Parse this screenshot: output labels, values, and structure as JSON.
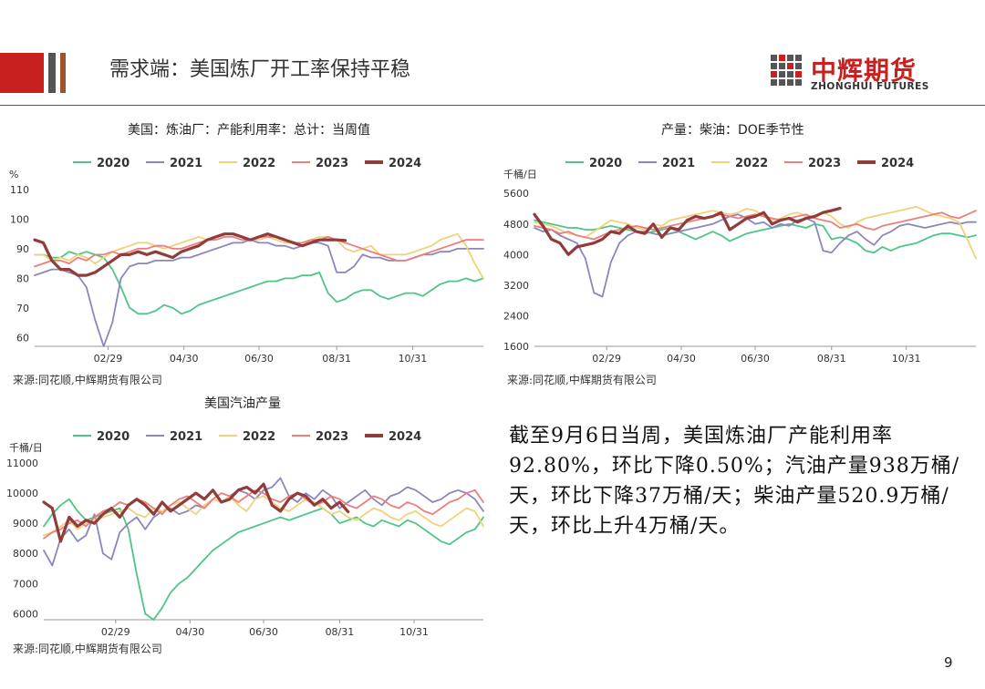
{
  "header": {
    "title": "需求端：美国炼厂开工率保持平稳",
    "logo_cn": "中辉期货",
    "logo_en": "ZHONGHUI FUTURES"
  },
  "summary": "截至9月6日当周，美国炼油厂产能利用率92.80%，环比下降0.50%；汽油产量938万桶/天，环比下降37万桶/天；柴油产量520.9万桶/天，环比上升4万桶/天。",
  "page_number": "9",
  "colors": {
    "2020": "#4fc586",
    "2021": "#8a86c0",
    "2022": "#efd27a",
    "2023": "#ee7e7c",
    "2024": "#8f3c3a"
  },
  "chart_data": [
    {
      "type": "line",
      "title": "美国：炼油厂：产能利用率：总计：当周值",
      "ylabel": "%",
      "source": "来源:同花顺,中辉期货有限公司",
      "x_ticks": [
        "02/29",
        "04/30",
        "06/30",
        "08/31",
        "10/31"
      ],
      "x_tick_weeks": [
        8.5,
        17.3,
        26.0,
        35.0,
        43.8
      ],
      "yticks": [
        60,
        70,
        80,
        90,
        100,
        110
      ],
      "ylim": [
        57,
        110
      ],
      "xlim": [
        0,
        52
      ],
      "series": [
        {
          "name": "2020",
          "values": [
            88,
            88,
            87,
            87,
            89,
            88,
            89,
            88,
            87,
            83,
            77,
            70,
            68,
            68,
            69,
            71,
            70,
            68,
            69,
            71,
            72,
            73,
            74,
            75,
            76,
            77,
            78,
            79,
            79,
            80,
            80,
            81,
            81,
            82,
            75,
            72,
            73,
            75,
            76,
            76,
            74,
            73,
            74,
            75,
            75,
            74,
            76,
            78,
            79,
            79,
            80,
            79,
            80
          ]
        },
        {
          "name": "2021",
          "values": [
            81,
            82,
            83,
            83,
            82,
            81,
            77,
            66,
            57,
            65,
            80,
            84,
            85,
            85,
            86,
            86,
            86,
            87,
            87,
            88,
            89,
            90,
            91,
            92,
            92,
            93,
            92,
            92,
            91,
            91,
            90,
            91,
            92,
            92,
            91,
            82,
            82,
            84,
            88,
            87,
            87,
            86,
            86,
            86,
            87,
            88,
            88,
            89,
            89,
            90,
            90,
            90,
            90
          ]
        },
        {
          "name": "2022",
          "values": [
            88,
            88,
            86,
            87,
            86,
            88,
            87,
            85,
            87,
            89,
            90,
            91,
            92,
            92,
            91,
            90,
            91,
            92,
            93,
            94,
            93,
            94,
            95,
            95,
            94,
            93,
            93,
            94,
            93,
            92,
            92,
            91,
            93,
            94,
            94,
            93,
            90,
            89,
            90,
            91,
            88,
            88,
            88,
            88,
            89,
            90,
            91,
            93,
            94,
            95,
            91,
            85,
            80
          ]
        },
        {
          "name": "2023",
          "values": [
            84,
            85,
            86,
            86,
            85,
            87,
            86,
            88,
            88,
            89,
            88,
            89,
            90,
            90,
            91,
            91,
            90,
            90,
            91,
            92,
            93,
            93,
            94,
            94,
            93,
            93,
            94,
            94,
            94,
            93,
            92,
            92,
            93,
            93,
            94,
            93,
            92,
            91,
            90,
            89,
            88,
            87,
            86,
            86,
            87,
            88,
            89,
            90,
            91,
            92,
            93,
            93,
            93
          ]
        },
        {
          "name": "2024",
          "values": [
            93,
            92,
            86,
            83,
            83,
            81,
            81,
            82,
            84,
            86,
            88,
            88,
            89,
            88,
            89,
            88,
            87,
            89,
            90,
            91,
            93,
            94,
            95,
            95,
            94,
            93,
            94,
            95,
            94,
            93,
            92,
            91,
            92,
            93,
            93,
            93,
            92.8
          ]
        }
      ]
    },
    {
      "type": "line",
      "title": "产量：柴油：DOE季节性",
      "ylabel": "千桶/日",
      "source": "来源:同花顺,中辉期货有限公司",
      "x_ticks": [
        "02/29",
        "04/30",
        "06/30",
        "08/31",
        "10/31"
      ],
      "x_tick_weeks": [
        8.5,
        17.3,
        26.0,
        35.0,
        43.8
      ],
      "yticks": [
        1600,
        2400,
        3200,
        4000,
        4800,
        5600
      ],
      "ylim": [
        1600,
        5700
      ],
      "xlim": [
        0,
        52
      ],
      "series": [
        {
          "name": "2020",
          "values": [
            4900,
            4850,
            4800,
            4750,
            4700,
            4700,
            4650,
            4650,
            4700,
            4750,
            4700,
            4650,
            4600,
            4550,
            4600,
            4650,
            4700,
            4600,
            4500,
            4400,
            4500,
            4600,
            4500,
            4350,
            4450,
            4550,
            4600,
            4650,
            4700,
            4750,
            4800,
            4750,
            4700,
            4800,
            4750,
            4400,
            4450,
            4400,
            4300,
            4100,
            4050,
            4200,
            4100,
            4200,
            4250,
            4300,
            4400,
            4500,
            4550,
            4550,
            4500,
            4450,
            4500
          ]
        },
        {
          "name": "2021",
          "values": [
            4700,
            4600,
            4650,
            4500,
            4400,
            4300,
            3900,
            3000,
            2900,
            3800,
            4300,
            4500,
            4600,
            4600,
            4550,
            4500,
            4550,
            4600,
            4650,
            4700,
            4750,
            4800,
            4900,
            5000,
            5050,
            4950,
            4800,
            4850,
            4700,
            4800,
            4750,
            4900,
            4950,
            4850,
            4100,
            4050,
            4300,
            4500,
            4600,
            4400,
            4250,
            4500,
            4600,
            4750,
            4800,
            4750,
            4700,
            4750,
            4800,
            4850,
            4800,
            4850,
            4850
          ]
        },
        {
          "name": "2022",
          "values": [
            4850,
            4800,
            4750,
            4650,
            4550,
            4500,
            4450,
            4600,
            4750,
            4900,
            4850,
            4800,
            4700,
            4650,
            4800,
            4750,
            4900,
            4950,
            5000,
            5050,
            5100,
            5150,
            5100,
            5050,
            5100,
            5200,
            5150,
            5000,
            4900,
            4950,
            5050,
            5100,
            5000,
            4950,
            5100,
            5000,
            4800,
            4700,
            4850,
            4950,
            5000,
            5050,
            5100,
            5150,
            5200,
            5250,
            5150,
            5050,
            5000,
            4950,
            4850,
            4400,
            3900
          ]
        },
        {
          "name": "2023",
          "values": [
            4750,
            4700,
            4650,
            4550,
            4600,
            4500,
            4450,
            4400,
            4500,
            4600,
            4650,
            4700,
            4750,
            4700,
            4650,
            4700,
            4750,
            4800,
            4850,
            4900,
            4950,
            5000,
            5050,
            5000,
            4950,
            5000,
            5050,
            5000,
            4950,
            4900,
            4950,
            5000,
            5050,
            4950,
            4900,
            4850,
            4700,
            4750,
            4800,
            4700,
            4650,
            4750,
            4800,
            4850,
            4900,
            4950,
            5000,
            5050,
            5100,
            5000,
            4950,
            5050,
            5150
          ]
        },
        {
          "name": "2024",
          "values": [
            5050,
            4750,
            4400,
            4300,
            4000,
            4200,
            4250,
            4300,
            4400,
            4600,
            4550,
            4750,
            4600,
            4550,
            4800,
            4450,
            4700,
            4650,
            4900,
            5000,
            4950,
            5000,
            5100,
            4650,
            4800,
            4950,
            5000,
            5100,
            4800,
            4900,
            4950,
            4850,
            4950,
            5000,
            5100,
            5150,
            5209
          ]
        }
      ]
    },
    {
      "type": "line",
      "title": "美国汽油产量",
      "ylabel": "千桶/日",
      "source": "来源:同花顺,中辉期货有限公司",
      "x_ticks": [
        "02/29",
        "04/30",
        "06/30",
        "08/31",
        "10/31"
      ],
      "x_tick_weeks": [
        8.5,
        17.3,
        26.0,
        35.0,
        43.8
      ],
      "yticks": [
        6000,
        7000,
        8000,
        9000,
        10000,
        11000
      ],
      "ylim": [
        5800,
        11000
      ],
      "xlim": [
        0,
        52
      ],
      "series": [
        {
          "name": "2020",
          "values": [
            8900,
            9300,
            9600,
            9800,
            9400,
            9100,
            9200,
            9300,
            9400,
            9500,
            8800,
            7300,
            6000,
            5800,
            6200,
            6700,
            7000,
            7200,
            7500,
            7800,
            8100,
            8300,
            8500,
            8700,
            8800,
            8900,
            9000,
            9100,
            9200,
            9100,
            9200,
            9300,
            9400,
            9500,
            9300,
            9000,
            9100,
            9200,
            9000,
            8900,
            9100,
            9000,
            8900,
            9100,
            9000,
            8800,
            8600,
            8400,
            8300,
            8500,
            8700,
            8800,
            9200
          ]
        },
        {
          "name": "2021",
          "values": [
            8100,
            7600,
            8500,
            8800,
            8400,
            8600,
            9300,
            8000,
            7800,
            8700,
            9000,
            9200,
            8800,
            9200,
            9400,
            9500,
            9300,
            9400,
            9600,
            9500,
            9800,
            9700,
            9900,
            10100,
            10000,
            9800,
            10100,
            10200,
            10500,
            9900,
            9700,
            10000,
            9800,
            10100,
            9900,
            9500,
            9700,
            9900,
            10100,
            9800,
            9600,
            9900,
            10000,
            10200,
            10100,
            9900,
            9700,
            9800,
            10000,
            10100,
            10000,
            9800,
            9400
          ]
        },
        {
          "name": "2022",
          "values": [
            8600,
            8700,
            8900,
            9100,
            8800,
            9000,
            9100,
            9200,
            9300,
            9400,
            9500,
            9300,
            9200,
            9500,
            9400,
            9600,
            9700,
            9500,
            9300,
            9600,
            9800,
            9700,
            9900,
            9600,
            9400,
            9800,
            9900,
            9700,
            9500,
            9400,
            9600,
            9800,
            9700,
            9500,
            9300,
            9400,
            9200,
            9100,
            9300,
            9500,
            9400,
            9200,
            9100,
            9300,
            9400,
            9200,
            9000,
            8900,
            9100,
            9300,
            9500,
            9400,
            8900
          ]
        },
        {
          "name": "2023",
          "values": [
            8500,
            8700,
            8800,
            9000,
            9100,
            8900,
            9200,
            9400,
            9500,
            9700,
            9600,
            9800,
            9700,
            9500,
            9300,
            9600,
            9800,
            9900,
            9700,
            9500,
            9800,
            10000,
            9900,
            9700,
            9900,
            10100,
            10000,
            9800,
            9700,
            9900,
            10000,
            9800,
            9600,
            9700,
            9900,
            9800,
            9600,
            9500,
            9700,
            9900,
            9800,
            9600,
            9500,
            9700,
            9600,
            9400,
            9300,
            9500,
            9700,
            9800,
            10000,
            10100,
            9700
          ]
        },
        {
          "name": "2024",
          "values": [
            9700,
            9500,
            8400,
            9200,
            8900,
            9100,
            9000,
            9300,
            9500,
            9200,
            9600,
            9800,
            9600,
            9300,
            9700,
            9400,
            9600,
            9800,
            10000,
            9800,
            10100,
            9700,
            9800,
            10100,
            10200,
            10000,
            10300,
            9600,
            9400,
            9800,
            10000,
            9900,
            9600,
            9800,
            9500,
            9700,
            9380
          ]
        }
      ]
    }
  ]
}
